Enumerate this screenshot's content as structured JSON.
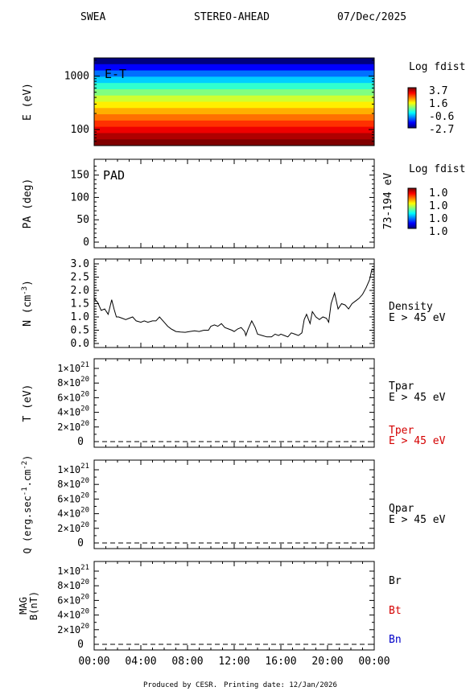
{
  "header": {
    "instrument": "SWEA",
    "spacecraft": "STEREO-AHEAD",
    "date": "07/Dec/2025"
  },
  "footer": {
    "produced_by": "Produced by CESR.",
    "printing_date": "Printing date: 12/Jan/2026"
  },
  "colors": {
    "black": "#000000",
    "red": "#d40000",
    "blue": "#0000c8"
  },
  "panels": [
    {
      "id": "et",
      "tag": "E-T",
      "ylabel": "E (eV)",
      "yticks": [
        "1000",
        "100"
      ],
      "colorbar": {
        "title": "Log fdist",
        "ticks": [
          "3.7",
          "1.6",
          "-0.6",
          "-2.7"
        ]
      }
    },
    {
      "id": "pad",
      "tag": "PAD",
      "ylabel": "PA (deg)",
      "yticks": [
        "150",
        "100",
        "50",
        "0"
      ],
      "side_label": "73-194 eV",
      "colorbar": {
        "title": "Log fdist",
        "ticks": [
          "1.0",
          "1.0",
          "1.0",
          "1.0"
        ]
      }
    },
    {
      "id": "density",
      "ylabel": "N (cm",
      "ylabel_sup": "-3",
      "ylabel_close": ")",
      "yticks": [
        "3.0",
        "2.5",
        "2.0",
        "1.5",
        "1.0",
        "0.5",
        "0.0"
      ],
      "legend": [
        "Density",
        "E > 45 eV"
      ]
    },
    {
      "id": "temperature",
      "ylabel": "T (eV)",
      "yticks": [
        "1×10",
        "8×10",
        "6×10",
        "4×10",
        "2×10",
        "0"
      ],
      "ytick_exp": "21",
      "ytick_exp2": "20",
      "legend": [
        "Tpar",
        "E > 45 eV",
        "Tper",
        "E > 45 eV"
      ]
    },
    {
      "id": "heatflux",
      "ylabel": "Q (erg.sec",
      "ylabel_sup1": "-1",
      "ylabel_mid": ".cm",
      "ylabel_sup2": "-2",
      "ylabel_close": ")",
      "yticks": [
        "1×10",
        "8×10",
        "6×10",
        "4×10",
        "2×10",
        "0"
      ],
      "ytick_exp": "21",
      "ytick_exp2": "20",
      "legend": [
        "Qpar",
        "E > 45 eV"
      ]
    },
    {
      "id": "mag",
      "ylabel": "MAG",
      "ylabel2": "B(nT)",
      "yticks": [
        "1×10",
        "8×10",
        "6×10",
        "4×10",
        "2×10",
        "0"
      ],
      "ytick_exp": "21",
      "ytick_exp2": "20",
      "legend": [
        "Br",
        "Bt",
        "Bn"
      ]
    }
  ],
  "xaxis": {
    "ticks": [
      "00:00",
      "04:00",
      "08:00",
      "12:00",
      "16:00",
      "20:00",
      "00:00"
    ]
  },
  "chart_data": {
    "type": "line",
    "title": "",
    "x_range_hours": [
      0,
      24
    ],
    "density": {
      "xlim_hours": [
        0,
        24
      ],
      "ylim": [
        0,
        3
      ],
      "x_hours": [
        0.0,
        0.3,
        0.6,
        0.9,
        1.2,
        1.5,
        1.7,
        1.9,
        2.1,
        2.4,
        2.7,
        3.0,
        3.3,
        3.6,
        4.0,
        4.3,
        4.6,
        5.0,
        5.3,
        5.6,
        6.0,
        6.3,
        6.6,
        6.8,
        7.0,
        7.4,
        7.8,
        8.2,
        8.6,
        9.0,
        9.4,
        9.8,
        10.0,
        10.3,
        10.6,
        10.9,
        11.2,
        11.5,
        11.8,
        12.0,
        12.3,
        12.6,
        12.9,
        13.0,
        13.2,
        13.5,
        13.8,
        14.0,
        14.4,
        14.8,
        15.2,
        15.5,
        15.8,
        16.0,
        16.3,
        16.6,
        16.9,
        17.2,
        17.5,
        17.8,
        18.0,
        18.2,
        18.5,
        18.7,
        19.0,
        19.3,
        19.6,
        19.9,
        20.1,
        20.3,
        20.6,
        20.9,
        21.2,
        21.5,
        21.8,
        22.1,
        22.4,
        22.7,
        23.0,
        23.3,
        23.6,
        23.8,
        24.0
      ],
      "values": [
        1.7,
        1.55,
        1.25,
        1.3,
        1.1,
        1.65,
        1.3,
        1.0,
        1.0,
        0.95,
        0.9,
        0.95,
        1.0,
        0.85,
        0.8,
        0.85,
        0.8,
        0.85,
        0.85,
        1.0,
        0.8,
        0.65,
        0.55,
        0.5,
        0.45,
        0.43,
        0.42,
        0.45,
        0.48,
        0.45,
        0.5,
        0.5,
        0.65,
        0.7,
        0.65,
        0.75,
        0.6,
        0.55,
        0.5,
        0.45,
        0.55,
        0.6,
        0.45,
        0.3,
        0.55,
        0.85,
        0.6,
        0.35,
        0.3,
        0.25,
        0.25,
        0.35,
        0.3,
        0.35,
        0.3,
        0.25,
        0.4,
        0.35,
        0.3,
        0.4,
        0.9,
        1.1,
        0.75,
        1.2,
        1.0,
        0.9,
        1.0,
        0.95,
        0.8,
        1.5,
        1.9,
        1.3,
        1.5,
        1.45,
        1.3,
        1.5,
        1.6,
        1.7,
        1.85,
        2.1,
        2.4,
        2.8,
        2.75
      ]
    },
    "temperature": {
      "ylim": [
        0,
        1e+21
      ],
      "series": [
        {
          "name": "Tpar",
          "values": [
            0
          ]
        },
        {
          "name": "Tper",
          "values": [
            0
          ]
        }
      ]
    },
    "heatflux": {
      "ylim": [
        0,
        1e+21
      ],
      "series": [
        {
          "name": "Qpar",
          "values": [
            0
          ]
        }
      ]
    },
    "mag": {
      "ylim": [
        0,
        1e+21
      ],
      "series": [
        {
          "name": "Br",
          "values": [
            0
          ]
        },
        {
          "name": "Bt",
          "values": [
            0
          ]
        },
        {
          "name": "Bn",
          "values": [
            0
          ]
        }
      ]
    },
    "spectrogram": {
      "energy_range_ev": [
        50,
        2200
      ],
      "log_fdist_range": [
        -2.7,
        3.7
      ],
      "band_log_fdist_top_to_bottom": [
        -2.7,
        -1.9,
        -1.2,
        -0.6,
        0.0,
        0.5,
        1.0,
        1.4,
        1.8,
        2.2,
        2.6,
        3.0,
        3.4,
        3.7
      ]
    }
  }
}
